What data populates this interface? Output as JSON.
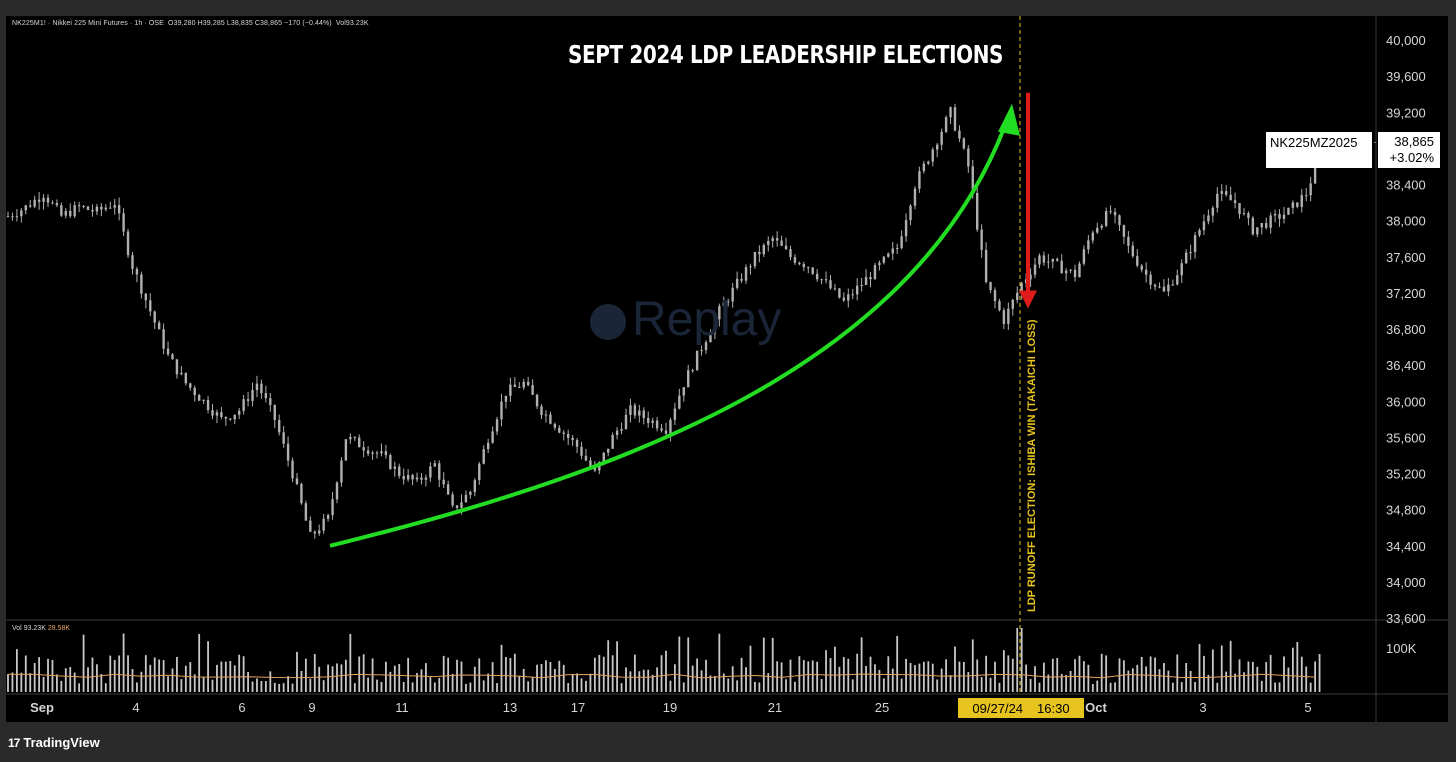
{
  "header": {
    "symbol_line": "NK225M1! · Nikkei 225 Mini Futures · 1h · OSE",
    "ohlc": "O39,280  H39,285  L38,835  C38,865  −170 (−0.44%)",
    "volume": "Vol93.23K"
  },
  "watermark": {
    "text": "Replay"
  },
  "price_tag": {
    "symbol": "NK225MZ2025",
    "price": "38,865",
    "change": "+3.02%"
  },
  "volume_header": {
    "label": "Vol",
    "value": "93.23K",
    "ma": "28.58K"
  },
  "date_badge": {
    "date": "09/27/24",
    "time": "16:30"
  },
  "branding": {
    "logo_mark": "17",
    "name": "TradingView"
  },
  "colors": {
    "background": "#000000",
    "candles": "#b0b0b0",
    "up_arrow": "#22dd22",
    "down_arrow": "#e01b1b",
    "event_line": "#e6c31e",
    "volume_ma": "#e3a15b"
  },
  "chart_data": {
    "type": "line",
    "title": "SEPT 2024 LDP LEADERSHIP ELECTIONS",
    "ylim": [
      33600,
      40200
    ],
    "y_ticks": [
      40000,
      39600,
      39200,
      38800,
      38400,
      38000,
      37600,
      37200,
      36800,
      36400,
      36000,
      35600,
      35200,
      34800,
      34400,
      34000,
      33600
    ],
    "y_tick_labels": [
      "40,000",
      "39,600",
      "39,200",
      "38,800",
      "38,400",
      "38,000",
      "37,600",
      "37,200",
      "36,800",
      "36,400",
      "36,000",
      "35,600",
      "35,200",
      "34,800",
      "34,400",
      "34,000",
      "33,600"
    ],
    "x_tick_labels": [
      "Sep",
      "4",
      "6",
      "9",
      "11",
      "13",
      "17",
      "19",
      "21",
      "25",
      "Oct",
      "3",
      "5"
    ],
    "volume_tick_label": "100K",
    "series": [
      {
        "values": [
          38050,
          38150,
          38300,
          38050,
          38150,
          38100,
          38200,
          37500,
          37000,
          36500,
          36200,
          36000,
          35800,
          35900,
          36200,
          35800,
          35200,
          34500,
          34700,
          35600,
          35500,
          35400,
          35200,
          35100,
          35300,
          34800,
          35000,
          35600,
          36100,
          36200,
          35900,
          35700,
          35500,
          35200,
          35600,
          35900,
          35800,
          35700,
          36200,
          36600,
          37000,
          37300,
          37600,
          37800,
          37600,
          37500,
          37300,
          37100,
          37300,
          37500,
          37700,
          38400,
          38800,
          39200,
          38600,
          37300,
          36900,
          37300,
          37600,
          37500,
          37400,
          37900,
          38100,
          37700,
          37400,
          37200,
          37500,
          37900,
          38300,
          38200,
          37900,
          38000,
          38100,
          38300,
          38865
        ]
      }
    ],
    "annotations": [
      {
        "type": "text",
        "text": "LDP RUNOFF ELECTION: ISHIBA WIN (TAKAICHI LOSS)"
      },
      {
        "type": "arrow",
        "direction": "up",
        "from": 34400,
        "to": 39250
      },
      {
        "type": "arrow",
        "direction": "down",
        "from": 39350,
        "to": 37050
      }
    ]
  }
}
